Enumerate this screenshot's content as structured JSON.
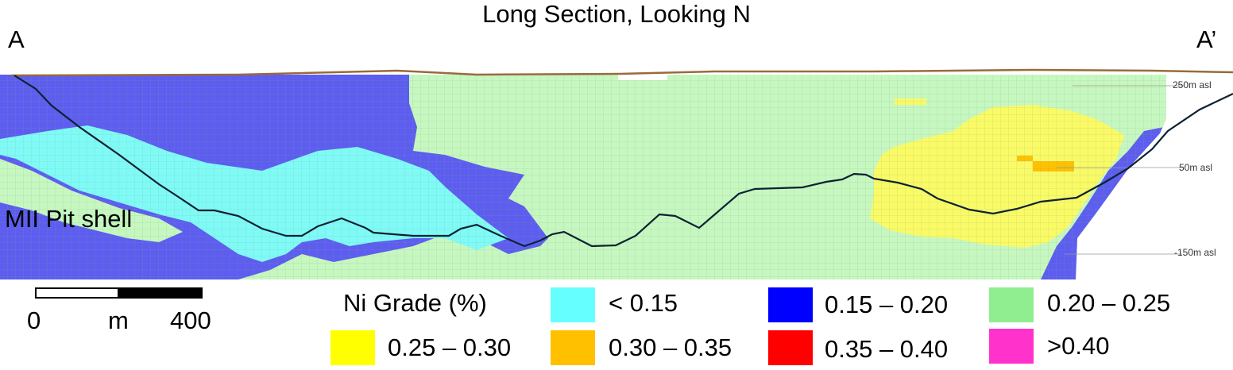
{
  "title": "Long Section, Looking N",
  "section_start_label": "A",
  "section_end_label": "A’",
  "pit_label": "MII Pit shell",
  "elevation_labels": {
    "top": "250m asl",
    "middle": "50m asl",
    "bottom": "-150m asl"
  },
  "scale_bar": {
    "start": "0",
    "unit": "m",
    "end": "400"
  },
  "legend": {
    "title": "Ni Grade (%)",
    "items": [
      {
        "label": "< 0.15",
        "color": "#66ffff"
      },
      {
        "label": "0.15 – 0.20",
        "color": "#0000ff"
      },
      {
        "label": "0.20 – 0.25",
        "color": "#90ee90"
      },
      {
        "label": "0.25 – 0.30",
        "color": "#ffff00"
      },
      {
        "label": "0.30 – 0.35",
        "color": "#ffc000"
      },
      {
        "label": "0.35 – 0.40",
        "color": "#ff0000"
      },
      {
        "label": ">0.40",
        "color": "#ff33cc"
      }
    ]
  },
  "colors": {
    "block_low": "#7ffaf7",
    "block_mid": "#5d5df0",
    "block_green": "#c7f7c0",
    "block_yellow": "#fafa66",
    "block_orange": "#ffc000",
    "topography": "#9a6a3a",
    "pit_shell": "#0d2233",
    "grid_line": "#8dbf8a"
  }
}
